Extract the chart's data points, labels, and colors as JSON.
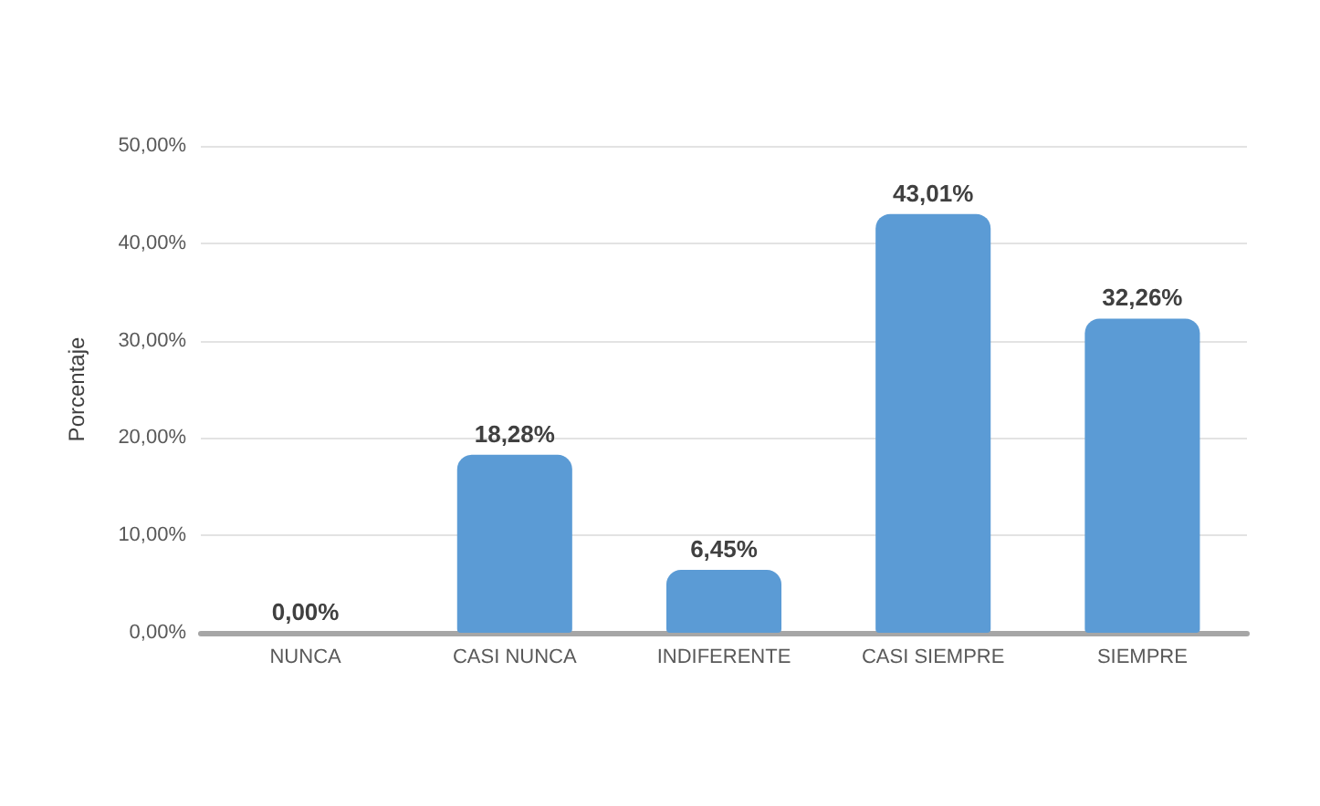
{
  "chart_data": {
    "type": "bar",
    "ylabel": "Porcentaje",
    "categories": [
      "NUNCA",
      "CASI NUNCA",
      "INDIFERENTE",
      "CASI SIEMPRE",
      "SIEMPRE"
    ],
    "values": [
      0,
      18.28,
      6.45,
      43.01,
      32.26
    ],
    "value_labels": [
      "0,00%",
      "18,28%",
      "6,45%",
      "43,01%",
      "32,26%"
    ],
    "color": "#5b9bd5",
    "ylim": [
      0,
      50
    ],
    "yticks": [
      {
        "value": 0,
        "label": "0,00%"
      },
      {
        "value": 10,
        "label": "10,00%"
      },
      {
        "value": 20,
        "label": "20,00%"
      },
      {
        "value": 30,
        "label": "30,00%"
      },
      {
        "value": 40,
        "label": "40,00%"
      },
      {
        "value": 50,
        "label": "50,00%"
      }
    ],
    "grid": true
  }
}
